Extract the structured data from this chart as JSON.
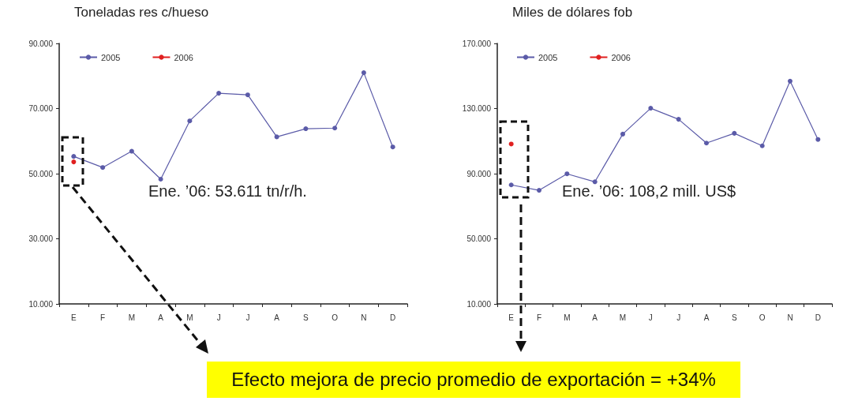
{
  "chart_data": [
    {
      "type": "line",
      "title": "Toneladas res c/hueso",
      "categories": [
        "E",
        "F",
        "M",
        "A",
        "M",
        "J",
        "J",
        "A",
        "S",
        "O",
        "N",
        "D"
      ],
      "series": [
        {
          "name": "2005",
          "color": "#5b5ba8",
          "values": [
            55300,
            51900,
            56900,
            48300,
            66200,
            74700,
            74200,
            61300,
            63800,
            64000,
            81000,
            58200
          ]
        },
        {
          "name": "2006",
          "color": "#e02020",
          "values": [
            53611,
            null,
            null,
            null,
            null,
            null,
            null,
            null,
            null,
            null,
            null,
            null
          ]
        }
      ],
      "ylim": [
        10000,
        90000
      ],
      "yticks": [
        {
          "value": 10000,
          "label": "10.000"
        },
        {
          "value": 30000,
          "label": "30.000"
        },
        {
          "value": 50000,
          "label": "50.000"
        },
        {
          "value": 70000,
          "label": "70.000"
        },
        {
          "value": 90000,
          "label": "90.000"
        }
      ],
      "legend": "top left",
      "marker": "circle",
      "annotations": [
        "Ene. ’06: 53.611 tn/r/h.",
        "Efecto mejora de precio promedio de exportación = +34%"
      ]
    },
    {
      "type": "line",
      "title": "Miles de dólares fob",
      "categories": [
        "E",
        "F",
        "M",
        "A",
        "M",
        "J",
        "J",
        "A",
        "S",
        "O",
        "N",
        "D"
      ],
      "series": [
        {
          "name": "2005",
          "color": "#5b5ba8",
          "values": [
            83100,
            79800,
            89900,
            85000,
            114300,
            130200,
            123400,
            108800,
            114800,
            107100,
            146800,
            111000
          ]
        },
        {
          "name": "2006",
          "color": "#e02020",
          "values": [
            108200,
            null,
            null,
            null,
            null,
            null,
            null,
            null,
            null,
            null,
            null,
            null
          ]
        }
      ],
      "ylim": [
        10000,
        170000
      ],
      "yticks": [
        {
          "value": 10000,
          "label": "10.000"
        },
        {
          "value": 50000,
          "label": "50.000"
        },
        {
          "value": 90000,
          "label": "90.000"
        },
        {
          "value": 130000,
          "label": "130.000"
        },
        {
          "value": 170000,
          "label": "170.000"
        }
      ],
      "legend": "top left",
      "marker": "circle",
      "annotations": [
        "Ene. ’06: 108,2 mill. US$"
      ]
    }
  ]
}
